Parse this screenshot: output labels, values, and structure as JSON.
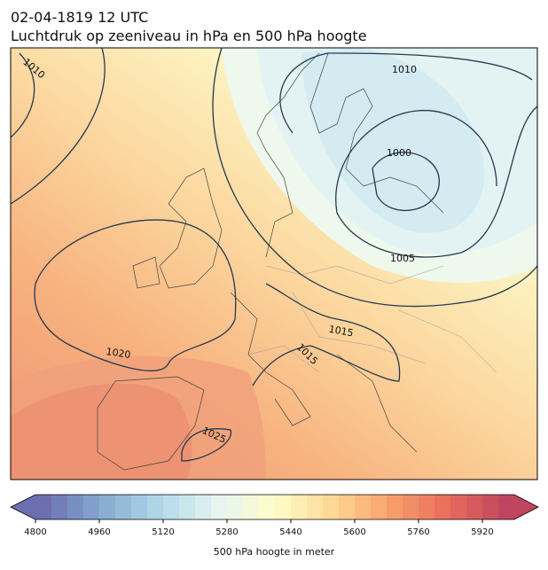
{
  "header": {
    "title": "02-04-1819 12 UTC",
    "subtitle": "Luchtdruk op zeeniveau in hPa en 500 hPa hoogte"
  },
  "isobar_labels": [
    1010,
    1010,
    1000,
    1005,
    1015,
    1015,
    1020,
    1025
  ],
  "colorbar": {
    "label": "500 hPa hoogte in meter",
    "lim": [
      4800,
      6000
    ],
    "step": 40,
    "ticks": [
      4800,
      4960,
      5120,
      5280,
      5440,
      5600,
      5760,
      5920
    ],
    "colors": [
      "#6b6fb0",
      "#85a9d0",
      "#b0d8e8",
      "#e6f4f2",
      "#fefdc9",
      "#fdd896",
      "#f8a06a",
      "#e86c5c",
      "#c04560"
    ],
    "extend": "both"
  }
}
